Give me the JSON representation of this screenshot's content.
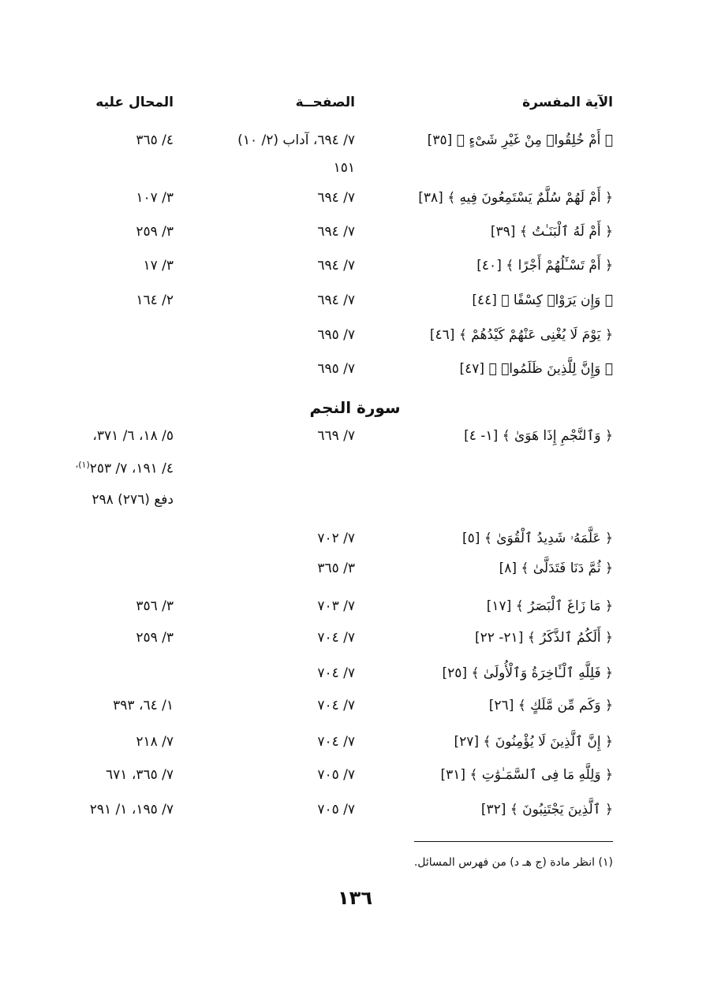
{
  "headers": {
    "verse": "الآية المفسرة",
    "page": "الصفحــة",
    "ref": "المحال عليه"
  },
  "section_heading": "سورة النجم",
  "rows_before": [
    {
      "verse": "﴿ أَمْ خُلِقُوا۟ مِنْ غَيْرِ شَىْءٍ ﴾ [٣٥]",
      "page": "٧/ ٦٩٤، آداب (٢/ ١٠)",
      "ref": "٤/ ٣٦٥"
    },
    {
      "verse": "",
      "page": "١٥١",
      "ref": ""
    },
    {
      "verse": "﴿ أَمْ لَهُمْ سُلَّمٌ يَسْتَمِعُونَ فِيهِ ﴾ [٣٨]",
      "page": "٧/ ٦٩٤",
      "ref": "٣/ ١٠٧"
    },
    {
      "verse": "﴿ أَمْ لَهُ ٱلْبَنَـٰتُ ﴾ [٣٩]",
      "page": "٧/ ٦٩٤",
      "ref": "٣/ ٢٥٩"
    },
    {
      "verse": "﴿ أَمْ تَسْـَٔلُهُمْ أَجْرًا ﴾ [٤٠]",
      "page": "٧/ ٦٩٤",
      "ref": "٣/ ١٧"
    },
    {
      "verse": "﴿ وَإِن يَرَوْا۟ كِسْفًا ﴾ [٤٤]",
      "page": "٧/ ٦٩٤",
      "ref": "٢/ ١٦٤"
    },
    {
      "verse": "﴿ يَوْمَ لَا يُغْنِى عَنْهُمْ كَيْدُهُمْ ﴾ [٤٦]",
      "page": "٧/ ٦٩٥",
      "ref": ""
    },
    {
      "verse": "﴿ وَإِنَّ لِلَّذِينَ ظَلَمُوا۟ ﴾ [٤٧]",
      "page": "٧/ ٦٩٥",
      "ref": ""
    }
  ],
  "rows_after": [
    {
      "verse": "﴿ وَٱلنَّجْمِ إِذَا هَوَىٰ ﴾ [١- ٤]",
      "page": "٧/ ٦٦٩",
      "ref": "٥/ ١٨، ٦/ ٣٧١،"
    },
    {
      "verse": "",
      "page": "",
      "ref": "٤/ ١٩١، ٧/ ٢٥٣",
      "sup": "(١)"
    },
    {
      "verse": "",
      "page": "",
      "ref": "دفع (٢٧٦) ٢٩٨"
    },
    {
      "verse": "﴿ عَلَّمَهُۥ شَدِيدُ ٱلْقُوَىٰ ﴾ [٥]",
      "page": "٧/ ٧٠٢",
      "ref": ""
    },
    {
      "verse": "﴿ ثُمَّ دَنَا فَتَدَلَّىٰ ﴾ [٨]",
      "page": "٣/ ٣٦٥",
      "ref": ""
    },
    {
      "verse": "﴿ مَا زَاغَ ٱلْبَصَرُ ﴾ [١٧]",
      "page": "٧/ ٧٠٣",
      "ref": "٣/ ٣٥٦"
    },
    {
      "verse": "﴿ أَلَكُمُ ٱلذَّكَرُ ﴾ [٢١- ٢٢]",
      "page": "٧/ ٧٠٤",
      "ref": "٣/ ٢٥٩"
    },
    {
      "verse": "﴿ فَلِلَّهِ ٱلْـَٔاخِرَةُ وَٱلْأُولَىٰ ﴾ [٢٥]",
      "page": "٧/ ٧٠٤",
      "ref": ""
    },
    {
      "verse": "﴿ وَكَم مِّن مَّلَكٍ ﴾ [٢٦]",
      "page": "٧/ ٧٠٤",
      "ref": "١/ ٦٤، ٣٩٣"
    },
    {
      "verse": "﴿ إِنَّ ٱلَّذِينَ لَا يُؤْمِنُونَ ﴾ [٢٧]",
      "page": "٧/ ٧٠٤",
      "ref": "٧/ ٢١٨"
    },
    {
      "verse": "﴿ وَلِلَّهِ مَا فِى ٱلسَّمَـٰوَٰتِ ﴾ [٣١]",
      "page": "٧/ ٧٠٥",
      "ref": "٧/ ٣٦٥، ٦٧١"
    },
    {
      "verse": "﴿ ٱلَّذِينَ يَجْتَنِبُونَ ﴾ [٣٢]",
      "page": "٧/ ٧٠٥",
      "ref": "٧/ ١٩٥، ١/ ٢٩١"
    }
  ],
  "footnote": "(١) انظر مادة (ج هـ د) من فهرس المسائل.",
  "page_number": "١٣٦"
}
